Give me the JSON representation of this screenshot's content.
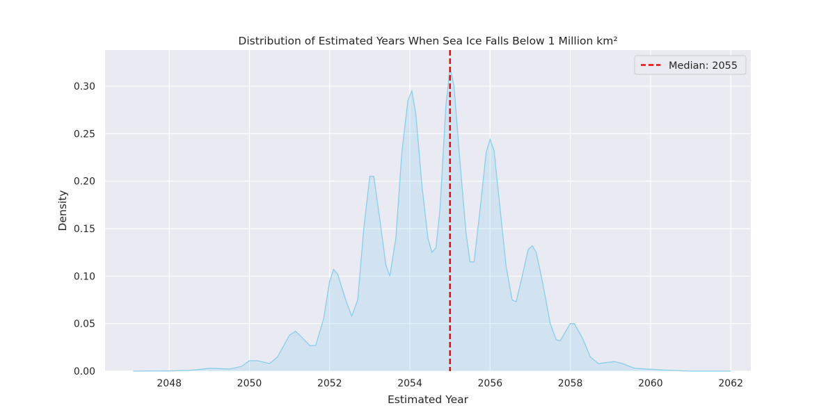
{
  "chart_data": {
    "type": "area",
    "title": "Distribution of Estimated Years When Sea Ice Falls Below 1 Million km²",
    "xlabel": "Estimated Year",
    "ylabel": "Density",
    "xlim": [
      2046.4,
      2062.5
    ],
    "ylim": [
      0,
      0.338
    ],
    "xticks": [
      2048,
      2050,
      2052,
      2054,
      2056,
      2058,
      2060,
      2062
    ],
    "xtick_labels": [
      "2048",
      "2050",
      "2052",
      "2054",
      "2056",
      "2058",
      "2060",
      "2062"
    ],
    "yticks": [
      0,
      0.05,
      0.1,
      0.15,
      0.2,
      0.25,
      0.3
    ],
    "ytick_labels": [
      "0.00",
      "0.05",
      "0.10",
      "0.15",
      "0.20",
      "0.25",
      "0.30"
    ],
    "grid": true,
    "legend_position": "top-right",
    "series": [
      {
        "name": "",
        "style": "kde-filled",
        "points": [
          [
            2047.1,
            0.0
          ],
          [
            2048.0,
            0.0002
          ],
          [
            2048.5,
            0.0008
          ],
          [
            2048.8,
            0.002
          ],
          [
            2049.0,
            0.003
          ],
          [
            2049.2,
            0.0028
          ],
          [
            2049.5,
            0.0022
          ],
          [
            2049.8,
            0.005
          ],
          [
            2050.0,
            0.011
          ],
          [
            2050.2,
            0.011
          ],
          [
            2050.5,
            0.008
          ],
          [
            2050.7,
            0.015
          ],
          [
            2051.0,
            0.038
          ],
          [
            2051.15,
            0.042
          ],
          [
            2051.3,
            0.036
          ],
          [
            2051.5,
            0.027
          ],
          [
            2051.65,
            0.027
          ],
          [
            2051.85,
            0.055
          ],
          [
            2052.0,
            0.095
          ],
          [
            2052.1,
            0.107
          ],
          [
            2052.2,
            0.102
          ],
          [
            2052.4,
            0.075
          ],
          [
            2052.55,
            0.058
          ],
          [
            2052.7,
            0.075
          ],
          [
            2052.85,
            0.15
          ],
          [
            2053.0,
            0.205
          ],
          [
            2053.1,
            0.205
          ],
          [
            2053.25,
            0.16
          ],
          [
            2053.4,
            0.112
          ],
          [
            2053.5,
            0.1
          ],
          [
            2053.65,
            0.14
          ],
          [
            2053.8,
            0.23
          ],
          [
            2053.95,
            0.285
          ],
          [
            2054.05,
            0.295
          ],
          [
            2054.15,
            0.27
          ],
          [
            2054.3,
            0.195
          ],
          [
            2054.45,
            0.14
          ],
          [
            2054.55,
            0.125
          ],
          [
            2054.65,
            0.13
          ],
          [
            2054.75,
            0.17
          ],
          [
            2054.9,
            0.28
          ],
          [
            2055.0,
            0.32
          ],
          [
            2055.1,
            0.3
          ],
          [
            2055.25,
            0.22
          ],
          [
            2055.4,
            0.145
          ],
          [
            2055.5,
            0.115
          ],
          [
            2055.6,
            0.115
          ],
          [
            2055.75,
            0.17
          ],
          [
            2055.9,
            0.23
          ],
          [
            2056.0,
            0.244
          ],
          [
            2056.1,
            0.232
          ],
          [
            2056.25,
            0.17
          ],
          [
            2056.4,
            0.11
          ],
          [
            2056.55,
            0.075
          ],
          [
            2056.65,
            0.073
          ],
          [
            2056.8,
            0.1
          ],
          [
            2056.95,
            0.128
          ],
          [
            2057.05,
            0.132
          ],
          [
            2057.15,
            0.125
          ],
          [
            2057.3,
            0.095
          ],
          [
            2057.5,
            0.05
          ],
          [
            2057.65,
            0.033
          ],
          [
            2057.75,
            0.032
          ],
          [
            2057.9,
            0.043
          ],
          [
            2058.0,
            0.05
          ],
          [
            2058.1,
            0.05
          ],
          [
            2058.3,
            0.035
          ],
          [
            2058.5,
            0.015
          ],
          [
            2058.7,
            0.008
          ],
          [
            2058.9,
            0.009
          ],
          [
            2059.1,
            0.01
          ],
          [
            2059.3,
            0.008
          ],
          [
            2059.6,
            0.003
          ],
          [
            2060.0,
            0.002
          ],
          [
            2060.4,
            0.001
          ],
          [
            2061.0,
            0.0
          ],
          [
            2062.0,
            0.0
          ]
        ]
      }
    ],
    "reference_line": {
      "x": 2055,
      "label": "Median: 2055",
      "style": "dashed"
    },
    "colors": {
      "plot_background": "#eaeaf2",
      "grid": "#ffffff",
      "line": "#87ceeb",
      "fill": "#87ceeb",
      "median": "#ff0000"
    }
  }
}
